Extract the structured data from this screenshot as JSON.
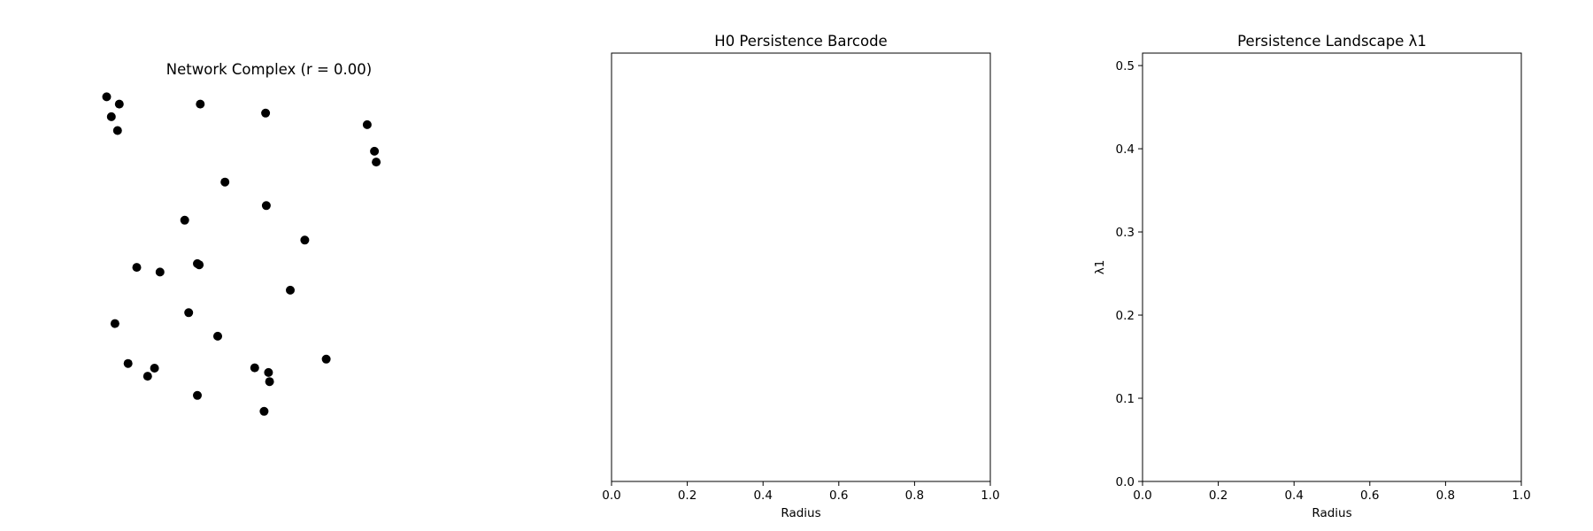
{
  "figure": {
    "background": "#ffffff"
  },
  "chart_data": [
    {
      "type": "scatter",
      "title": "Network Complex (r = 0.00)",
      "axes_visible": false,
      "point_color": "#000000",
      "points": [
        [
          0.05,
          0.965
        ],
        [
          0.085,
          0.945
        ],
        [
          0.063,
          0.91
        ],
        [
          0.08,
          0.872
        ],
        [
          0.308,
          0.945
        ],
        [
          0.488,
          0.92
        ],
        [
          0.768,
          0.888
        ],
        [
          0.788,
          0.815
        ],
        [
          0.793,
          0.785
        ],
        [
          0.376,
          0.73
        ],
        [
          0.49,
          0.665
        ],
        [
          0.265,
          0.625
        ],
        [
          0.596,
          0.57
        ],
        [
          0.3,
          0.505
        ],
        [
          0.305,
          0.502
        ],
        [
          0.133,
          0.495
        ],
        [
          0.197,
          0.482
        ],
        [
          0.556,
          0.432
        ],
        [
          0.276,
          0.37
        ],
        [
          0.073,
          0.34
        ],
        [
          0.356,
          0.305
        ],
        [
          0.109,
          0.23
        ],
        [
          0.182,
          0.217
        ],
        [
          0.163,
          0.195
        ],
        [
          0.655,
          0.242
        ],
        [
          0.458,
          0.218
        ],
        [
          0.496,
          0.205
        ],
        [
          0.499,
          0.18
        ],
        [
          0.3,
          0.142
        ],
        [
          0.484,
          0.098
        ]
      ]
    },
    {
      "type": "bar",
      "title": "H0 Persistence Barcode",
      "xlabel": "Radius",
      "ylabel": "",
      "xlim": [
        0.0,
        1.0
      ],
      "xticks": [
        "0.0",
        "0.2",
        "0.4",
        "0.6",
        "0.8",
        "1.0"
      ],
      "yticks": [],
      "bars": []
    },
    {
      "type": "line",
      "title": "Persistence Landscape λ1",
      "xlabel": "Radius",
      "ylabel": "λ1",
      "xlim": [
        0.0,
        1.0
      ],
      "ylim": [
        0.0,
        0.515
      ],
      "xticks": [
        "0.0",
        "0.2",
        "0.4",
        "0.6",
        "0.8",
        "1.0"
      ],
      "yticks": [
        "0.0",
        "0.1",
        "0.2",
        "0.3",
        "0.4",
        "0.5"
      ],
      "series": []
    }
  ]
}
